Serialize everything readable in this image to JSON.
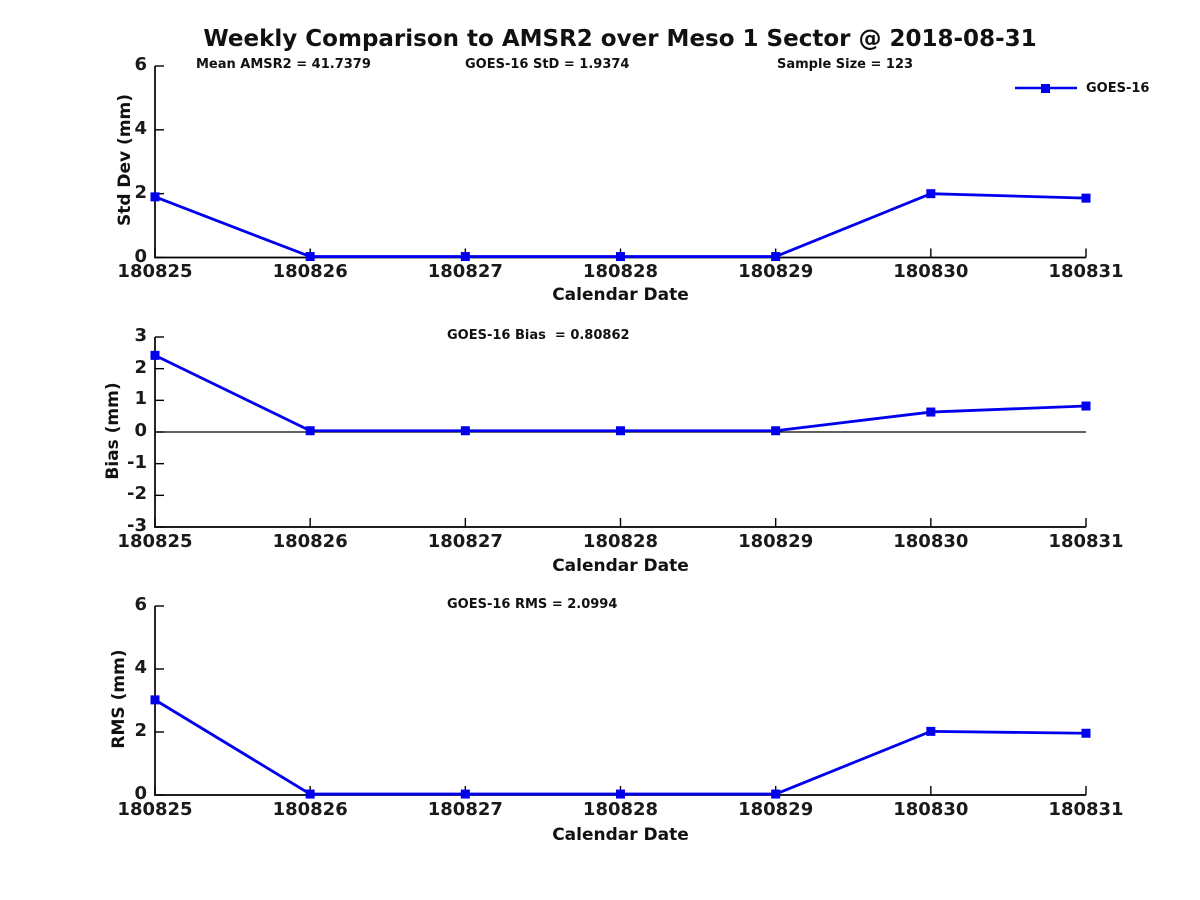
{
  "figure": {
    "title": "Weekly Comparison to AMSR2 over Meso 1 Sector @ 2018-08-31",
    "colors": {
      "line": "#0000ee",
      "axis": "#000000",
      "text": "#1a1a1a",
      "background": "#ffffff"
    }
  },
  "legend": {
    "label": "GOES-16",
    "marker": "filled-square"
  },
  "chart_data": [
    {
      "type": "line",
      "annotations": [
        "Mean AMSR2 = 41.7379",
        "GOES-16 StD = 1.9374",
        "Sample Size = 123"
      ],
      "categories": [
        "180825",
        "180826",
        "180827",
        "180828",
        "180829",
        "180830",
        "180831"
      ],
      "series": [
        {
          "name": "GOES-16",
          "values": [
            1.9,
            0.03,
            0.03,
            0.03,
            0.03,
            2.0,
            1.86
          ]
        }
      ],
      "xlabel": "Calendar Date",
      "ylabel": "Std Dev (mm)",
      "ylim": [
        0,
        6
      ],
      "yticks": [
        0,
        2,
        4,
        6
      ],
      "zero_line": false,
      "grid": false,
      "legend_position": "top-right-outside"
    },
    {
      "type": "line",
      "annotations": [
        "GOES-16 Bias  = 0.80862"
      ],
      "categories": [
        "180825",
        "180826",
        "180827",
        "180828",
        "180829",
        "180830",
        "180831"
      ],
      "series": [
        {
          "name": "GOES-16",
          "values": [
            2.42,
            0.04,
            0.04,
            0.04,
            0.04,
            0.63,
            0.82
          ]
        }
      ],
      "xlabel": "Calendar Date",
      "ylabel": "Bias (mm)",
      "ylim": [
        -3,
        3
      ],
      "yticks": [
        -3,
        -2,
        -1,
        0,
        1,
        2,
        3
      ],
      "zero_line": true,
      "grid": false
    },
    {
      "type": "line",
      "annotations": [
        "GOES-16 RMS = 2.0994"
      ],
      "categories": [
        "180825",
        "180826",
        "180827",
        "180828",
        "180829",
        "180830",
        "180831"
      ],
      "series": [
        {
          "name": "GOES-16",
          "values": [
            3.02,
            0.03,
            0.03,
            0.03,
            0.03,
            2.02,
            1.96
          ]
        }
      ],
      "xlabel": "Calendar Date",
      "ylabel": "RMS (mm)",
      "ylim": [
        0,
        6
      ],
      "yticks": [
        0,
        2,
        4,
        6
      ],
      "zero_line": false,
      "grid": false
    }
  ]
}
